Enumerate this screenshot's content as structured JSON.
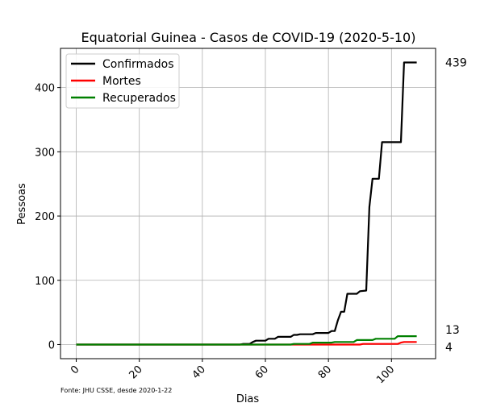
{
  "chart_data": {
    "type": "line",
    "title": "Equatorial Guinea - Casos de COVID-19 (2020-5-10)",
    "xlabel": "Dias",
    "ylabel": "Pessoas",
    "xlim": [
      -5,
      114
    ],
    "ylim": [
      -22,
      461
    ],
    "xticks": [
      0,
      20,
      40,
      60,
      80,
      100
    ],
    "yticks": [
      0,
      100,
      200,
      300,
      400
    ],
    "grid": true,
    "legend_position": "top-left",
    "source": "Fonte: JHU CSSE, desde 2020-1-22",
    "series": [
      {
        "name": "Confirmados",
        "color": "#000000",
        "end_label": "439",
        "points": [
          [
            0,
            0
          ],
          [
            52,
            0
          ],
          [
            53,
            1
          ],
          [
            55,
            1
          ],
          [
            56,
            4
          ],
          [
            57,
            6
          ],
          [
            59,
            6
          ],
          [
            60,
            6
          ],
          [
            61,
            9
          ],
          [
            63,
            9
          ],
          [
            64,
            12
          ],
          [
            68,
            12
          ],
          [
            69,
            15
          ],
          [
            70,
            15
          ],
          [
            71,
            16
          ],
          [
            75,
            16
          ],
          [
            76,
            18
          ],
          [
            80,
            18
          ],
          [
            81,
            21
          ],
          [
            82,
            21
          ],
          [
            83,
            38
          ],
          [
            84,
            51
          ],
          [
            85,
            51
          ],
          [
            86,
            79
          ],
          [
            89,
            79
          ],
          [
            90,
            83
          ],
          [
            92,
            84
          ],
          [
            93,
            214
          ],
          [
            94,
            258
          ],
          [
            96,
            258
          ],
          [
            97,
            315
          ],
          [
            103,
            315
          ],
          [
            104,
            439
          ],
          [
            108,
            439
          ]
        ]
      },
      {
        "name": "Mortes",
        "color": "#ff0000",
        "end_label": "4",
        "points": [
          [
            0,
            0
          ],
          [
            90,
            0
          ],
          [
            91,
            1
          ],
          [
            102,
            1
          ],
          [
            103,
            3
          ],
          [
            104,
            4
          ],
          [
            108,
            4
          ]
        ]
      },
      {
        "name": "Recuperados",
        "color": "#008000",
        "end_label": "13",
        "points": [
          [
            0,
            0
          ],
          [
            68,
            0
          ],
          [
            69,
            1
          ],
          [
            74,
            1
          ],
          [
            75,
            3
          ],
          [
            81,
            3
          ],
          [
            82,
            4
          ],
          [
            88,
            4
          ],
          [
            89,
            7
          ],
          [
            94,
            7
          ],
          [
            95,
            9
          ],
          [
            101,
            9
          ],
          [
            102,
            13
          ],
          [
            108,
            13
          ]
        ]
      }
    ]
  }
}
